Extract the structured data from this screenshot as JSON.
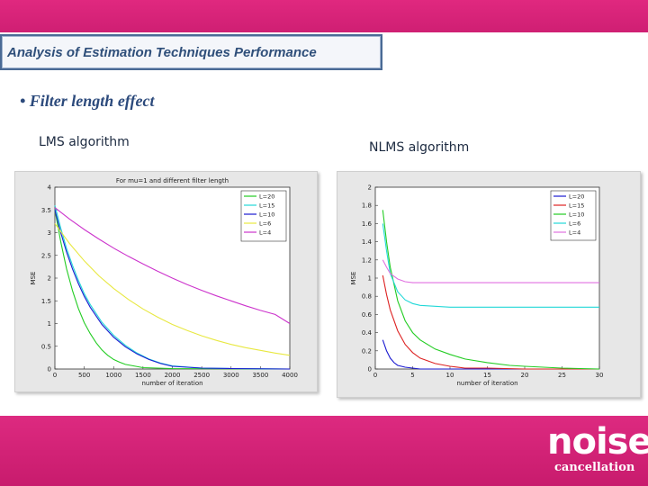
{
  "slide": {
    "title": "Analysis of Estimation Techniques Performance",
    "bullet": "• Filter length effect",
    "left_caption": "LMS  algorithm",
    "right_caption": "NLMS algorithm",
    "logo": {
      "word": "noise",
      "sub": "cancellation"
    }
  },
  "colors": {
    "pink": "#d4217a",
    "title_text": "#2f4f7a",
    "title_border": "#4a6a95"
  },
  "chart_data": [
    {
      "type": "line",
      "title": "For mu=1 and different filter length",
      "xlabel": "number of iteration",
      "ylabel": "MSE",
      "xlim": [
        0,
        4000
      ],
      "ylim": [
        0,
        4
      ],
      "xticks": [
        "0",
        "500",
        "1000",
        "1500",
        "2000",
        "2500",
        "3000",
        "3500",
        "4000"
      ],
      "yticks": [
        "0",
        "0.5",
        "1",
        "1.5",
        "2",
        "2.5",
        "3",
        "3.5",
        "4"
      ],
      "legend_position": "top-right",
      "series": [
        {
          "name": "L=20",
          "color": "#22cc22",
          "x": [
            0,
            100,
            200,
            300,
            400,
            500,
            600,
            700,
            800,
            900,
            1000,
            1100,
            1200,
            1500,
            2000,
            4000
          ],
          "y": [
            3.5,
            2.8,
            2.2,
            1.72,
            1.33,
            1.02,
            0.78,
            0.58,
            0.42,
            0.3,
            0.21,
            0.15,
            0.1,
            0.03,
            0.01,
            0.0
          ]
        },
        {
          "name": "L=15",
          "color": "#22d8d8",
          "x": [
            0,
            100,
            200,
            300,
            400,
            500,
            600,
            800,
            1000,
            1200,
            1400,
            1600,
            1800,
            2000,
            2500,
            3000,
            4000
          ],
          "y": [
            3.6,
            3.1,
            2.65,
            2.28,
            1.95,
            1.66,
            1.42,
            1.03,
            0.74,
            0.52,
            0.35,
            0.22,
            0.13,
            0.07,
            0.02,
            0.01,
            0.0
          ]
        },
        {
          "name": "L=10",
          "color": "#1a1ad0",
          "x": [
            0,
            100,
            200,
            300,
            400,
            500,
            600,
            800,
            1000,
            1200,
            1400,
            1600,
            1800,
            2000,
            2500,
            3000,
            4000
          ],
          "y": [
            3.5,
            3.0,
            2.57,
            2.2,
            1.88,
            1.6,
            1.36,
            0.98,
            0.7,
            0.49,
            0.33,
            0.21,
            0.12,
            0.06,
            0.02,
            0.01,
            0.0
          ]
        },
        {
          "name": "L=6",
          "color": "#e8e840",
          "x": [
            0,
            250,
            500,
            750,
            1000,
            1250,
            1500,
            1750,
            2000,
            2250,
            2500,
            2750,
            3000,
            3250,
            3500,
            3750,
            4000
          ],
          "y": [
            3.2,
            2.76,
            2.38,
            2.05,
            1.77,
            1.53,
            1.32,
            1.14,
            0.98,
            0.85,
            0.73,
            0.63,
            0.54,
            0.47,
            0.41,
            0.35,
            0.3
          ]
        },
        {
          "name": "L=4",
          "color": "#cc33cc",
          "x": [
            0,
            250,
            500,
            750,
            1000,
            1250,
            1500,
            1750,
            2000,
            2250,
            2500,
            2750,
            3000,
            3250,
            3500,
            3750,
            4000
          ],
          "y": [
            3.55,
            3.3,
            3.07,
            2.86,
            2.66,
            2.48,
            2.31,
            2.15,
            2.0,
            1.86,
            1.73,
            1.61,
            1.5,
            1.39,
            1.29,
            1.2,
            1.0
          ]
        }
      ]
    },
    {
      "type": "line",
      "title": "",
      "xlabel": "number of iteration",
      "ylabel": "MSE",
      "xlim": [
        0,
        30
      ],
      "ylim": [
        0,
        2
      ],
      "xticks": [
        "0",
        "5",
        "10",
        "15",
        "20",
        "25",
        "30"
      ],
      "yticks": [
        "0",
        "0.2",
        "0.4",
        "0.6",
        "0.8",
        "1",
        "1.2",
        "1.4",
        "1.6",
        "1.8",
        "2"
      ],
      "legend_position": "top-right",
      "series": [
        {
          "name": "L=20",
          "color": "#1a1ad0",
          "x": [
            1,
            1.5,
            2,
            2.5,
            3,
            4,
            5,
            6,
            8,
            30
          ],
          "y": [
            0.32,
            0.2,
            0.12,
            0.07,
            0.04,
            0.02,
            0.01,
            0.0,
            0.0,
            0.0
          ]
        },
        {
          "name": "L=15",
          "color": "#dd2222",
          "x": [
            1,
            1.5,
            2,
            3,
            4,
            5,
            6,
            8,
            10,
            12,
            15,
            20,
            30
          ],
          "y": [
            1.03,
            0.82,
            0.65,
            0.42,
            0.27,
            0.18,
            0.12,
            0.06,
            0.03,
            0.01,
            0.01,
            0.0,
            0.0
          ]
        },
        {
          "name": "L=10",
          "color": "#22cc22",
          "x": [
            1,
            1.5,
            2,
            3,
            4,
            5,
            6,
            8,
            10,
            12,
            15,
            18,
            20,
            25,
            30
          ],
          "y": [
            1.75,
            1.4,
            1.12,
            0.75,
            0.53,
            0.4,
            0.32,
            0.22,
            0.16,
            0.11,
            0.07,
            0.04,
            0.03,
            0.01,
            0.0
          ]
        },
        {
          "name": "L=6",
          "color": "#22d8d8",
          "x": [
            1,
            1.5,
            2,
            3,
            4,
            5,
            6,
            8,
            10,
            15,
            20,
            30
          ],
          "y": [
            1.6,
            1.3,
            1.05,
            0.85,
            0.76,
            0.72,
            0.7,
            0.69,
            0.68,
            0.68,
            0.68,
            0.68
          ]
        },
        {
          "name": "L=4",
          "color": "#e070e0",
          "x": [
            1,
            1.5,
            2,
            3,
            4,
            5,
            6,
            8,
            10,
            15,
            20,
            30
          ],
          "y": [
            1.2,
            1.12,
            1.05,
            0.99,
            0.96,
            0.95,
            0.95,
            0.95,
            0.95,
            0.95,
            0.95,
            0.95
          ]
        }
      ]
    }
  ]
}
